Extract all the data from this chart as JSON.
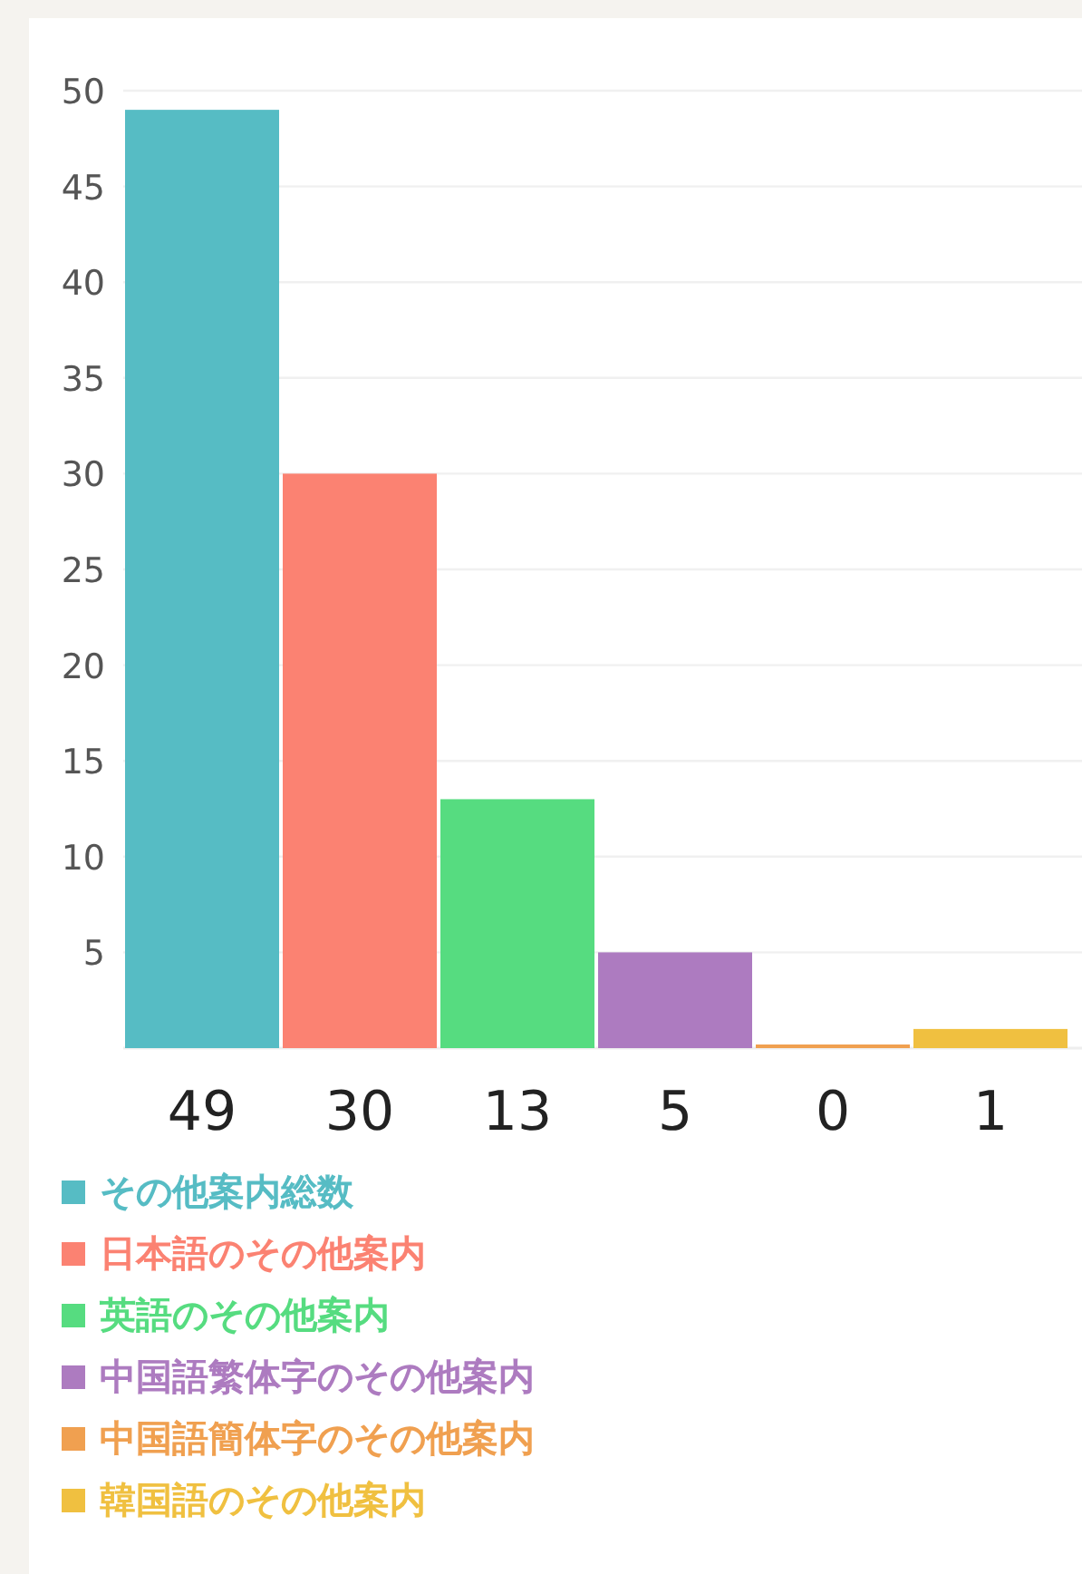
{
  "chart_data": {
    "type": "bar",
    "categories": [
      null,
      null,
      null,
      null,
      null,
      null
    ],
    "series": [
      {
        "name": "その他案内総数",
        "color": "#56bcc4",
        "values": [
          49,
          null,
          null,
          null,
          null,
          null
        ]
      },
      {
        "name": "日本語のその他案内",
        "color": "#fb8272",
        "values": [
          null,
          30,
          null,
          null,
          null,
          null
        ]
      },
      {
        "name": "英語のその他案内",
        "color": "#56dc80",
        "values": [
          null,
          null,
          13,
          null,
          null,
          null
        ]
      },
      {
        "name": "中国語繁体字のその他案内",
        "color": "#ad7bc0",
        "values": [
          null,
          null,
          null,
          5,
          null,
          null
        ]
      },
      {
        "name": "中国語簡体字のその他案内",
        "color": "#f0a050",
        "values": [
          null,
          null,
          null,
          null,
          0,
          null
        ]
      },
      {
        "name": "韓国語のその他案内",
        "color": "#f0c040",
        "values": [
          null,
          null,
          null,
          null,
          null,
          1
        ]
      }
    ],
    "ylim": [
      0,
      50
    ],
    "yticks": [
      5,
      10,
      15,
      20,
      25,
      30,
      35,
      40,
      45,
      50
    ],
    "grid": "y",
    "legend": "bottom",
    "data_labels": true
  }
}
